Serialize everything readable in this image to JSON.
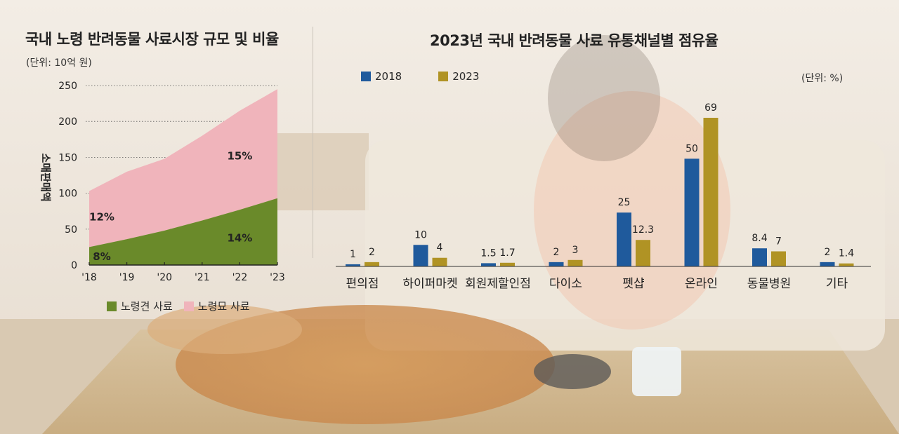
{
  "left_panel": {
    "title": "국내 노령 반려동물 사료시장 규모 및 비율",
    "unit": "(단위: 10억 원)"
  },
  "right_panel": {
    "title": "2023년 국내 반려동물 사료 유통채널별 점유율",
    "unit": "(단위: %)"
  },
  "colors": {
    "dog": "#6a8a2a",
    "cat": "#f0b4bb",
    "y2018": "#1f5a9c",
    "y2023": "#b09324"
  },
  "chart_data": [
    {
      "type": "area",
      "title": "국내 노령 반려동물 사료시장 규모 및 비율",
      "subtitle": "(단위: 10억 원)",
      "ylabel": "소매판매액",
      "ylim": [
        0,
        250
      ],
      "yticks": [
        "0",
        "50",
        "100",
        "150",
        "200",
        "250"
      ],
      "x": [
        "'18",
        "'19",
        "'20",
        "'21",
        "'22",
        "'23"
      ],
      "stacked": true,
      "grid": true,
      "legend_position": "bottom",
      "series": [
        {
          "name": "노령견 사료",
          "color": "#6a8a2a",
          "values": [
            25,
            36,
            48,
            62,
            77,
            93
          ]
        },
        {
          "name": "노령묘 사료",
          "color": "#f0b4bb",
          "values": [
            78,
            94,
            100,
            118,
            138,
            152
          ]
        }
      ],
      "totals": [
        103,
        130,
        148,
        180,
        215,
        245
      ],
      "annotations": [
        {
          "text": "12%",
          "x": "'18",
          "series": "노령묘 사료"
        },
        {
          "text": "15%",
          "x": "'22",
          "series": "노령묘 사료"
        },
        {
          "text": "8%",
          "x": "'18",
          "series": "노령견 사료"
        },
        {
          "text": "14%",
          "x": "'22",
          "series": "노령견 사료"
        }
      ]
    },
    {
      "type": "bar",
      "title": "2023년 국내 반려동물 사료 유통채널별 점유율",
      "subtitle": "(단위: %)",
      "legend_position": "top-left",
      "categories": [
        "편의점",
        "하이퍼마켓",
        "회원제할인점",
        "다이소",
        "펫샵",
        "온라인",
        "동물병원",
        "기타"
      ],
      "series": [
        {
          "name": "2018",
          "color": "#1f5a9c",
          "values": [
            1,
            10,
            1.5,
            2,
            25,
            50,
            8.4,
            2
          ],
          "labels": [
            "1",
            "10",
            "1.5",
            "2",
            "25",
            "50",
            "8.4",
            "2"
          ]
        },
        {
          "name": "2023",
          "color": "#b09324",
          "values": [
            2,
            4,
            1.7,
            3,
            12.3,
            69,
            7,
            1.4
          ],
          "labels": [
            "2",
            "4",
            "1.7",
            "3",
            "12.3",
            "69",
            "7",
            "1.4"
          ]
        }
      ]
    }
  ]
}
